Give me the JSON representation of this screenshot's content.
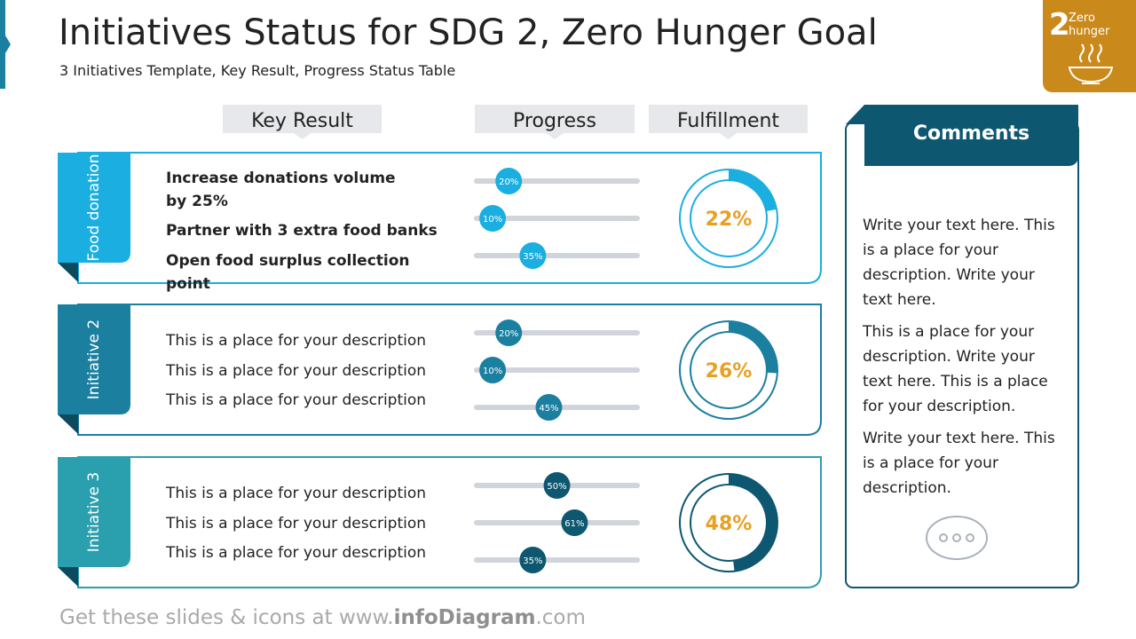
{
  "header": {
    "title": "Initiatives Status for SDG 2, Zero Hunger Goal",
    "subtitle": "3 Initiatives Template, Key Result, Progress Status Table"
  },
  "badge": {
    "number": "2",
    "label": "Zero hunger"
  },
  "columns": [
    "Key Result",
    "Progress",
    "Fulfillment"
  ],
  "rows": [
    {
      "name": "Food donation",
      "color": "#1aafe0",
      "bold": true,
      "results": [
        {
          "text": "Increase donations volume by 25%",
          "progress": 20,
          "progress_label": "20%"
        },
        {
          "text": "Partner with 3 extra food banks",
          "progress": 10,
          "progress_label": "10%"
        },
        {
          "text": "Open food surplus collection point",
          "progress": 35,
          "progress_label": "35%"
        }
      ],
      "fulfillment": 22,
      "fulfillment_label": "22%"
    },
    {
      "name": "Initiative 2",
      "color": "#1b7fa0",
      "bold": false,
      "results": [
        {
          "text": "This is a place for your description",
          "progress": 20,
          "progress_label": "20%"
        },
        {
          "text": "This is a place for your description",
          "progress": 10,
          "progress_label": "10%"
        },
        {
          "text": "This is a place for your description",
          "progress": 45,
          "progress_label": "45%"
        }
      ],
      "fulfillment": 26,
      "fulfillment_label": "26%"
    },
    {
      "name": "Initiative 3",
      "color": "#2a9fae",
      "bold": false,
      "results": [
        {
          "text": "This is a place for your description",
          "progress": 50,
          "progress_label": "50%"
        },
        {
          "text": "This is a place for your description",
          "progress": 61,
          "progress_label": "61%"
        },
        {
          "text": "This is a place for your description",
          "progress": 35,
          "progress_label": "35%"
        }
      ],
      "fulfillment": 48,
      "fulfillment_label": "48%"
    }
  ],
  "comments": {
    "title": "Comments",
    "paragraphs": [
      "Write your text here. This is a place for your description. Write your text here.",
      "This is a place for your description. Write your text here. This is a place for your description.",
      "Write your text here. This is a place for your description."
    ]
  },
  "footer": {
    "prefix": "Get these slides & icons at www.",
    "brand": "infoDiagram",
    "suffix": ".com"
  }
}
